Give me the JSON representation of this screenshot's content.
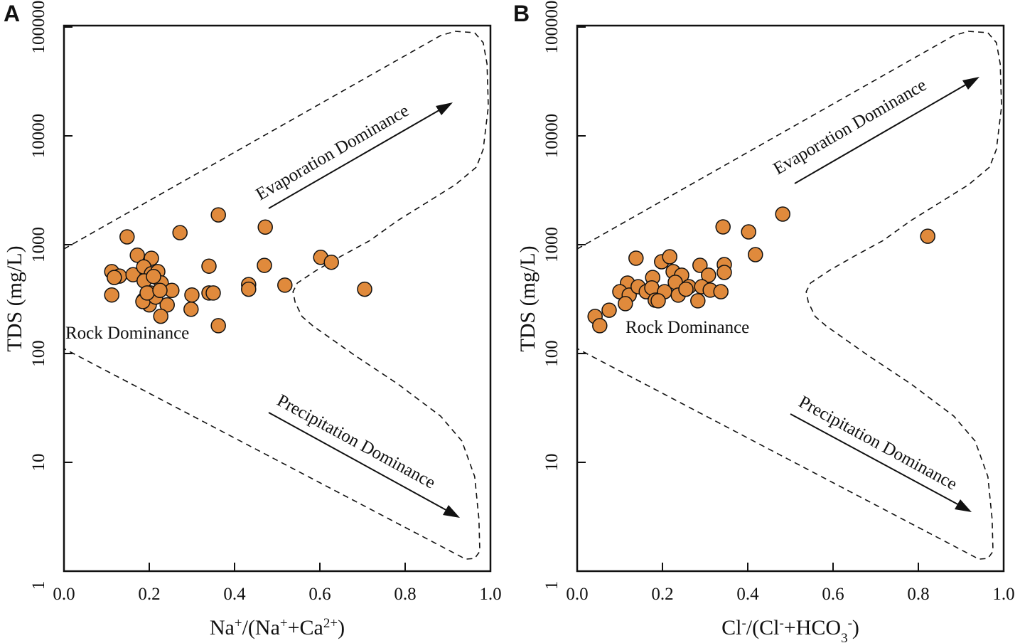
{
  "chart_data": [
    {
      "type": "scatter",
      "panel_label": "A",
      "ylabel": "TDS (mg/L)",
      "xlabel_parts": [
        "Na",
        "+",
        "/(Na",
        "+",
        "+Ca",
        "2+",
        ")"
      ],
      "xlabel_sup": [
        false,
        true,
        false,
        true,
        false,
        true,
        false
      ],
      "xlim": [
        0,
        1
      ],
      "ylim": [
        1,
        100000
      ],
      "yscale": "log",
      "xticks": [
        "0.0",
        "0.2",
        "0.4",
        "0.6",
        "0.8",
        "1.0"
      ],
      "yticks": [
        "1",
        "10",
        "100",
        "1000",
        "10000",
        "100000"
      ],
      "annotations": {
        "evaporation": "Evaporation Dominance",
        "rock": "Rock Dominance",
        "precipitation": "Precipitation Dominance"
      },
      "points": [
        [
          0.148,
          1180
        ],
        [
          0.272,
          1290
        ],
        [
          0.362,
          1880
        ],
        [
          0.172,
          800
        ],
        [
          0.205,
          750
        ],
        [
          0.112,
          565
        ],
        [
          0.13,
          515
        ],
        [
          0.162,
          530
        ],
        [
          0.187,
          625
        ],
        [
          0.205,
          540
        ],
        [
          0.22,
          565
        ],
        [
          0.188,
          465
        ],
        [
          0.228,
          445
        ],
        [
          0.203,
          360
        ],
        [
          0.253,
          380
        ],
        [
          0.112,
          345
        ],
        [
          0.187,
          310
        ],
        [
          0.2,
          280
        ],
        [
          0.242,
          280
        ],
        [
          0.227,
          220
        ],
        [
          0.3,
          345
        ],
        [
          0.298,
          255
        ],
        [
          0.34,
          635
        ],
        [
          0.34,
          360
        ],
        [
          0.35,
          360
        ],
        [
          0.362,
          180
        ],
        [
          0.472,
          1450
        ],
        [
          0.47,
          645
        ],
        [
          0.433,
          430
        ],
        [
          0.433,
          390
        ],
        [
          0.518,
          425
        ],
        [
          0.602,
          765
        ],
        [
          0.627,
          690
        ],
        [
          0.705,
          390
        ],
        [
          0.118,
          500
        ],
        [
          0.185,
          300
        ],
        [
          0.21,
          510
        ],
        [
          0.215,
          330
        ],
        [
          0.195,
          360
        ],
        [
          0.225,
          380
        ]
      ]
    },
    {
      "type": "scatter",
      "panel_label": "B",
      "ylabel": "TDS (mg/L)",
      "xlabel_parts": [
        "Cl",
        "-",
        "/(Cl",
        "-",
        "+HCO",
        "3",
        "-",
        ")"
      ],
      "xlabel_sup": [
        false,
        true,
        false,
        true,
        false,
        "sub",
        true,
        false
      ],
      "xlim": [
        0,
        1
      ],
      "ylim": [
        1,
        100000
      ],
      "yscale": "log",
      "xticks": [
        "0.0",
        "0.2",
        "0.4",
        "0.6",
        "0.8",
        "1.0"
      ],
      "yticks": [
        "1",
        "10",
        "100",
        "1000",
        "10000",
        "100000"
      ],
      "annotations": {
        "evaporation": "Evaporation Dominance",
        "rock": "Rock Dominance",
        "precipitation": "Precipitation Dominance"
      },
      "points": [
        [
          0.138,
          751
        ],
        [
          0.198,
          697
        ],
        [
          0.217,
          774
        ],
        [
          0.225,
          565
        ],
        [
          0.245,
          524
        ],
        [
          0.288,
          646
        ],
        [
          0.308,
          524
        ],
        [
          0.345,
          656
        ],
        [
          0.345,
          556
        ],
        [
          0.118,
          444
        ],
        [
          0.1,
          370
        ],
        [
          0.122,
          344
        ],
        [
          0.143,
          411
        ],
        [
          0.177,
          500
        ],
        [
          0.162,
          370
        ],
        [
          0.175,
          401
        ],
        [
          0.183,
          309
        ],
        [
          0.205,
          370
        ],
        [
          0.23,
          451
        ],
        [
          0.237,
          344
        ],
        [
          0.262,
          411
        ],
        [
          0.292,
          411
        ],
        [
          0.283,
          305
        ],
        [
          0.312,
          382
        ],
        [
          0.337,
          370
        ],
        [
          0.113,
          287
        ],
        [
          0.075,
          250
        ],
        [
          0.042,
          219
        ],
        [
          0.053,
          180
        ],
        [
          0.342,
          1457
        ],
        [
          0.402,
          1312
        ],
        [
          0.418,
          810
        ],
        [
          0.482,
          1910
        ],
        [
          0.822,
          1197
        ],
        [
          0.19,
          305
        ],
        [
          0.255,
          390
        ]
      ]
    }
  ],
  "boundary": [
    [
      0,
      914
    ],
    [
      0.883,
      83500
    ],
    [
      0.917,
      91400
    ],
    [
      0.963,
      88700
    ],
    [
      0.983,
      71800
    ],
    [
      0.992,
      45700
    ],
    [
      0.995,
      18500
    ],
    [
      0.983,
      7520
    ],
    [
      0.967,
      5160
    ],
    [
      0.917,
      3540
    ],
    [
      0.85,
      2430
    ],
    [
      0.783,
      1670
    ],
    [
      0.717,
      1090
    ],
    [
      0.65,
      785
    ],
    [
      0.592,
      582
    ],
    [
      0.547,
      444
    ],
    [
      0.537,
      370
    ],
    [
      0.542,
      296
    ],
    [
      0.558,
      219
    ],
    [
      0.583,
      180
    ],
    [
      0.683,
      95.5
    ],
    [
      0.783,
      52.4
    ],
    [
      0.883,
      26.6
    ],
    [
      0.933,
      15.7
    ],
    [
      0.963,
      7.4
    ],
    [
      0.973,
      3.0
    ],
    [
      0.975,
      1.52
    ],
    [
      0.963,
      1.31
    ],
    [
      0.942,
      1.29
    ],
    [
      0,
      111
    ]
  ],
  "colors": {
    "point": "#E08A3C",
    "stroke": "#111111"
  }
}
